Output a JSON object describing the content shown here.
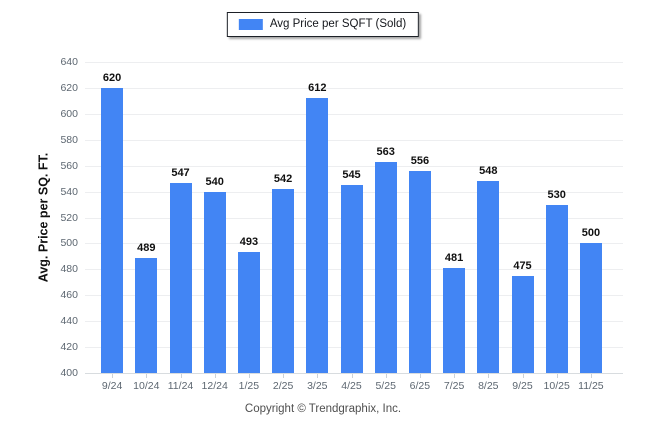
{
  "legend": {
    "label": "Avg Price per SQFT (Sold)",
    "swatch_color": "#4285F4"
  },
  "footer": {
    "copyright": "Copyright © Trendgraphix, Inc."
  },
  "chart_data": {
    "type": "bar",
    "title": "",
    "categories": [
      "9/24",
      "10/24",
      "11/24",
      "12/24",
      "1/25",
      "2/25",
      "3/25",
      "4/25",
      "5/25",
      "6/25",
      "7/25",
      "8/25",
      "9/25",
      "10/25",
      "11/25"
    ],
    "values": [
      620,
      489,
      547,
      540,
      493,
      542,
      612,
      545,
      563,
      556,
      481,
      548,
      475,
      530,
      500
    ],
    "series_name": "Avg Price per SQFT (Sold)",
    "xlabel": "",
    "ylabel": "Avg. Price per SQ. FT.",
    "ylim": [
      400,
      640
    ],
    "ytick_step": 20,
    "bar_color": "#4285F4",
    "grid": true,
    "legend_position": "top"
  }
}
